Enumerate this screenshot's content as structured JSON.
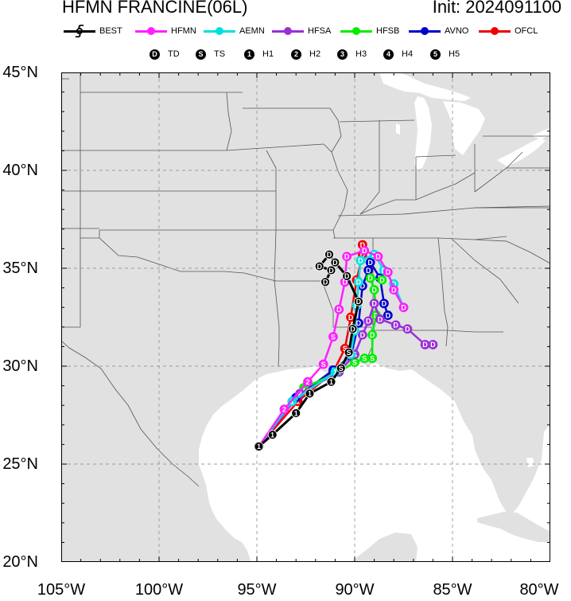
{
  "header": {
    "title": "HFMN FRANCINE(06L)",
    "init": "Init: 2024091100"
  },
  "legend": {
    "tracks": [
      {
        "label": "BEST",
        "color": "#000000",
        "icon": "hurricane-symbol-icon"
      },
      {
        "label": "HFMN",
        "color": "#ff1fff",
        "icon": "dot-icon"
      },
      {
        "label": "AEMN",
        "color": "#00e0e0",
        "icon": "dot-icon"
      },
      {
        "label": "HFSA",
        "color": "#9a2fd8",
        "icon": "dot-icon"
      },
      {
        "label": "HFSB",
        "color": "#00ee00",
        "icon": "dot-icon"
      },
      {
        "label": "AVNO",
        "color": "#0000cc",
        "icon": "dot-icon"
      },
      {
        "label": "OFCL",
        "color": "#ee0000",
        "icon": "dot-icon"
      }
    ],
    "intensity": [
      {
        "symbol": "D",
        "label": "TD"
      },
      {
        "symbol": "S",
        "label": "TS"
      },
      {
        "symbol": "1",
        "label": "H1"
      },
      {
        "symbol": "2",
        "label": "H2"
      },
      {
        "symbol": "3",
        "label": "H3"
      },
      {
        "symbol": "4",
        "label": "H4"
      },
      {
        "symbol": "5",
        "label": "H5"
      }
    ]
  },
  "axes": {
    "lat_labels": [
      "45°N",
      "40°N",
      "35°N",
      "30°N",
      "25°N",
      "20°N"
    ],
    "lon_labels": [
      "105°W",
      "100°W",
      "95°W",
      "90°W",
      "85°W",
      "80°W"
    ],
    "lon_range": [
      -105,
      -80
    ],
    "lat_range": [
      20,
      45
    ],
    "grid": true
  },
  "colors": {
    "land": "#e1e1e1",
    "water": "#ffffff",
    "border": "#555555",
    "grid": "#9a9a9a"
  },
  "chart_data": {
    "type": "map-track",
    "tracks": [
      {
        "name": "BEST",
        "color": "#000000",
        "points": [
          [
            -94.9,
            25.9,
            "1"
          ],
          [
            -94.2,
            26.5,
            "1"
          ],
          [
            -93.0,
            27.6,
            "1"
          ],
          [
            -92.3,
            28.6,
            "1"
          ],
          [
            -91.2,
            29.2,
            "1"
          ],
          [
            -90.7,
            29.9,
            "S"
          ],
          [
            -90.3,
            30.7,
            "S"
          ],
          [
            -90.1,
            31.9,
            "D"
          ],
          [
            -89.8,
            33.3,
            "D"
          ],
          [
            -90.4,
            34.6,
            "D"
          ],
          [
            -91.0,
            35.3,
            "D"
          ],
          [
            -91.3,
            35.7,
            "D"
          ],
          [
            -91.8,
            35.1,
            "D"
          ],
          [
            -91.2,
            34.9,
            "D"
          ],
          [
            -91.5,
            34.3,
            "D"
          ]
        ]
      },
      {
        "name": "HFMN",
        "color": "#ff1fff",
        "points": [
          [
            -94.9,
            25.9,
            "1"
          ],
          [
            -93.6,
            27.8,
            "2"
          ],
          [
            -92.4,
            29.2,
            "2"
          ],
          [
            -91.6,
            30.1,
            "S"
          ],
          [
            -91.1,
            31.5,
            "S"
          ],
          [
            -90.8,
            32.9,
            "D"
          ],
          [
            -90.5,
            34.3,
            "D"
          ],
          [
            -90.4,
            35.6,
            "D"
          ],
          [
            -89.5,
            35.9,
            "D"
          ],
          [
            -88.8,
            35.6,
            "D"
          ],
          [
            -88.3,
            34.8,
            "D"
          ],
          [
            -88.0,
            33.9,
            "D"
          ],
          [
            -87.5,
            33.0,
            "D"
          ]
        ]
      },
      {
        "name": "AEMN",
        "color": "#00e0e0",
        "points": [
          [
            -94.9,
            25.9,
            "1"
          ],
          [
            -93.2,
            28.2,
            "1"
          ],
          [
            -91.0,
            29.7,
            "1"
          ],
          [
            -90.2,
            30.6,
            "S"
          ],
          [
            -90.0,
            31.8,
            "D"
          ],
          [
            -89.9,
            33.1,
            "D"
          ],
          [
            -89.8,
            34.3,
            "D"
          ],
          [
            -89.7,
            35.4,
            "D"
          ],
          [
            -89.0,
            35.7,
            "D"
          ],
          [
            -88.5,
            34.9,
            "D"
          ],
          [
            -88.0,
            34.2,
            "D"
          ],
          [
            -87.5,
            33.0,
            "D"
          ]
        ]
      },
      {
        "name": "HFSA",
        "color": "#9a2fd8",
        "points": [
          [
            -94.9,
            25.9,
            "1"
          ],
          [
            -92.8,
            28.6,
            "2"
          ],
          [
            -90.8,
            29.7,
            "1"
          ],
          [
            -90.0,
            30.6,
            "S"
          ],
          [
            -89.6,
            31.6,
            "D"
          ],
          [
            -89.3,
            32.3,
            "D"
          ],
          [
            -89.0,
            33.2,
            "D"
          ],
          [
            -88.7,
            32.4,
            "D"
          ],
          [
            -87.9,
            32.1,
            "D"
          ],
          [
            -87.3,
            31.9,
            "D"
          ],
          [
            -86.4,
            31.1,
            "D"
          ],
          [
            -86.0,
            31.1,
            "D"
          ]
        ]
      },
      {
        "name": "HFSB",
        "color": "#00ee00",
        "points": [
          [
            -94.9,
            25.9,
            "1"
          ],
          [
            -92.6,
            28.9,
            "1"
          ],
          [
            -90.8,
            29.7,
            "1"
          ],
          [
            -90.0,
            30.2,
            "S"
          ],
          [
            -89.5,
            30.4,
            "S"
          ],
          [
            -89.1,
            30.4,
            "S"
          ],
          [
            -89.1,
            31.6,
            "D"
          ],
          [
            -88.9,
            32.6,
            "D"
          ],
          [
            -89.0,
            33.9,
            "D"
          ],
          [
            -89.2,
            34.5,
            "D"
          ],
          [
            -88.6,
            34.4,
            "D"
          ]
        ]
      },
      {
        "name": "AVNO",
        "color": "#0000cc",
        "points": [
          [
            -94.9,
            25.9,
            "1"
          ],
          [
            -93.0,
            28.4,
            "1"
          ],
          [
            -91.1,
            29.8,
            "1"
          ],
          [
            -90.2,
            30.5,
            "S"
          ],
          [
            -89.8,
            32.2,
            "D"
          ],
          [
            -89.6,
            34.1,
            "D"
          ],
          [
            -89.3,
            34.9,
            "D"
          ],
          [
            -89.2,
            35.3,
            "D"
          ],
          [
            -88.7,
            34.5,
            "D"
          ],
          [
            -88.5,
            33.2,
            "D"
          ],
          [
            -88.3,
            32.6,
            "D"
          ]
        ]
      },
      {
        "name": "OFCL",
        "color": "#ee0000",
        "points": [
          [
            -94.9,
            25.9,
            "1"
          ],
          [
            -92.9,
            28.2,
            "1"
          ],
          [
            -91.1,
            29.7,
            "1"
          ],
          [
            -90.5,
            30.9,
            "S"
          ],
          [
            -90.2,
            32.5,
            "D"
          ],
          [
            -89.9,
            34.4,
            "D"
          ],
          [
            -89.6,
            35.7,
            "D"
          ],
          [
            -89.6,
            36.2,
            "D"
          ]
        ]
      }
    ]
  }
}
